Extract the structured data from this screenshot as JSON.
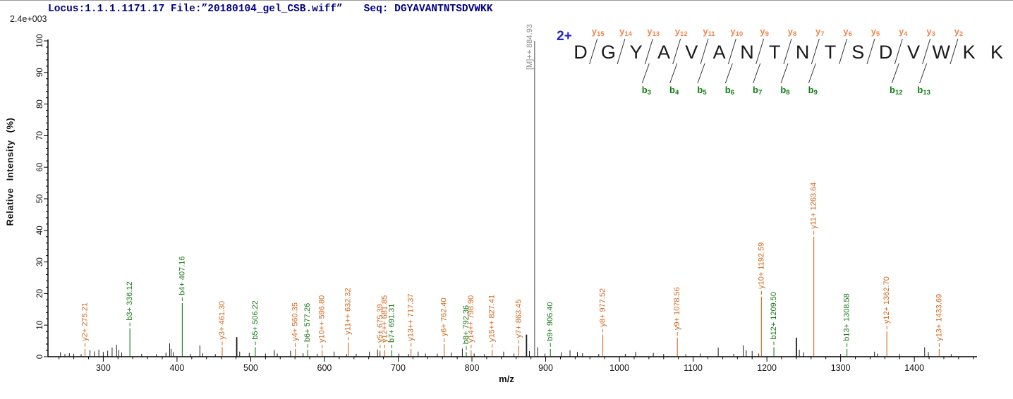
{
  "header": {
    "locus_file": "Locus:1.1.1.1171.17 File:”20180104_gel_CSB.wiff”",
    "seq": "Seq: DGYAVANTNTSDVWKK"
  },
  "colors": {
    "y_ion": "#d2691e",
    "b_ion": "#1b7a1b",
    "precursor_peak": "#8c8c8c",
    "precursor_label": "#8a8a8a",
    "noise": "#1a1a1a",
    "axis": "#000000",
    "header_text": "#000080",
    "charge": "#2121cc",
    "seq_letter": "#1a1a1a",
    "seq_y_label": "#ef8750",
    "seq_b_label": "#0f7d0f"
  },
  "sequence_panel": {
    "charge_label": "2+",
    "residues": [
      "D",
      "G",
      "Y",
      "A",
      "V",
      "A",
      "N",
      "T",
      "N",
      "T",
      "S",
      "D",
      "V",
      "W",
      "K",
      "K"
    ],
    "y_ion_marks": [
      {
        "junction": 1,
        "name": "y15"
      },
      {
        "junction": 2,
        "name": "y14"
      },
      {
        "junction": 3,
        "name": "y13"
      },
      {
        "junction": 4,
        "name": "y12"
      },
      {
        "junction": 5,
        "name": "y11"
      },
      {
        "junction": 6,
        "name": "y10"
      },
      {
        "junction": 7,
        "name": "y9"
      },
      {
        "junction": 8,
        "name": "y8"
      },
      {
        "junction": 9,
        "name": "y7"
      },
      {
        "junction": 10,
        "name": "y6"
      },
      {
        "junction": 11,
        "name": "y5"
      },
      {
        "junction": 12,
        "name": "y4"
      },
      {
        "junction": 13,
        "name": "y3"
      },
      {
        "junction": 14,
        "name": "y2"
      }
    ],
    "b_ion_marks": [
      {
        "junction": 3,
        "name": "b3"
      },
      {
        "junction": 4,
        "name": "b4"
      },
      {
        "junction": 5,
        "name": "b5"
      },
      {
        "junction": 6,
        "name": "b6"
      },
      {
        "junction": 7,
        "name": "b7"
      },
      {
        "junction": 8,
        "name": "b8"
      },
      {
        "junction": 9,
        "name": "b9"
      },
      {
        "junction": 12,
        "name": "b12"
      },
      {
        "junction": 13,
        "name": "b13"
      }
    ]
  },
  "chart_data": {
    "type": "bar",
    "title": "",
    "xlabel": "m/z",
    "ylabel": "Relative Intensity (%)",
    "y_scale_label": "2.4e+003",
    "xlim": [
      225,
      1485
    ],
    "ylim": [
      0,
      100
    ],
    "x_ticks": [
      300,
      400,
      500,
      600,
      700,
      800,
      900,
      1000,
      1100,
      1200,
      1300,
      1400
    ],
    "x_minor_step": 20,
    "y_ticks": [
      0,
      10,
      20,
      30,
      40,
      50,
      60,
      70,
      80,
      90,
      100
    ],
    "y_minor_step": 2,
    "grid": false,
    "annotated_peaks": [
      {
        "mz": 275.21,
        "intensity": 2.5,
        "ion": "y2+",
        "label": "y2+ 275.21",
        "series": "y"
      },
      {
        "mz": 336.12,
        "intensity": 9,
        "ion": "b3+",
        "label": "b3+ 336.12",
        "series": "b"
      },
      {
        "mz": 407.16,
        "intensity": 17,
        "ion": "b4+",
        "label": "b4+ 407.16",
        "series": "b"
      },
      {
        "mz": 461.3,
        "intensity": 3,
        "ion": "y3+",
        "label": "y3+ 461.30",
        "series": "y"
      },
      {
        "mz": 506.22,
        "intensity": 3,
        "ion": "b5+",
        "label": "b5+ 506.22",
        "series": "b"
      },
      {
        "mz": 560.35,
        "intensity": 2.5,
        "ion": "y4+",
        "label": "y4+ 560.35",
        "series": "y"
      },
      {
        "mz": 577.26,
        "intensity": 2.2,
        "ion": "b6+",
        "label": "b6+ 577.26",
        "series": "b"
      },
      {
        "mz": 596.8,
        "intensity": 2,
        "ion": "y10++",
        "label": "y10++ 596.80",
        "series": "y"
      },
      {
        "mz": 632.32,
        "intensity": 4.5,
        "ion": "y11++",
        "label": "y11++ 632.32",
        "series": "y"
      },
      {
        "mz": 675.39,
        "intensity": 2,
        "ion": "y5+",
        "label": "y5+ 675.39",
        "series": "y"
      },
      {
        "mz": 681.85,
        "intensity": 2,
        "ion": "y12++",
        "label": "y12++ 681.85",
        "series": "y"
      },
      {
        "mz": 691.31,
        "intensity": 2,
        "ion": "b7+",
        "label": "b7+ 691.31",
        "series": "b"
      },
      {
        "mz": 717.37,
        "intensity": 2.5,
        "ion": "y13++",
        "label": "y13++ 717.37",
        "series": "y"
      },
      {
        "mz": 762.4,
        "intensity": 4,
        "ion": "y6+",
        "label": "y6+ 762.40",
        "series": "y"
      },
      {
        "mz": 792.36,
        "intensity": 1.5,
        "ion": "b8+",
        "label": "b8+ 792.36",
        "series": "b"
      },
      {
        "mz": 798.9,
        "intensity": 2,
        "ion": "y14++",
        "label": "y14++ 798.90",
        "series": "y"
      },
      {
        "mz": 827.41,
        "intensity": 2.2,
        "ion": "y15++",
        "label": "y15++ 827.41",
        "series": "y"
      },
      {
        "mz": 863.45,
        "intensity": 3.5,
        "ion": "y7+",
        "label": "y7+ 863.45",
        "series": "y"
      },
      {
        "mz": 884.93,
        "intensity": 100,
        "ion": "[M]++",
        "label": "[M]++ 884.93",
        "series": "precursor"
      },
      {
        "mz": 906.4,
        "intensity": 2.5,
        "ion": "b9+",
        "label": "b9+ 906.40",
        "series": "b"
      },
      {
        "mz": 977.52,
        "intensity": 7,
        "ion": "y8+",
        "label": "y8+ 977.52",
        "series": "y"
      },
      {
        "mz": 1078.56,
        "intensity": 6,
        "ion": "y9+",
        "label": "y9+ 1078.56",
        "series": "y"
      },
      {
        "mz": 1192.59,
        "intensity": 19,
        "ion": "y10+",
        "label": "y10+ 1192.59",
        "series": "y"
      },
      {
        "mz": 1209.5,
        "intensity": 3,
        "ion": "b12+",
        "label": "b12+ 1209.50",
        "series": "b"
      },
      {
        "mz": 1263.64,
        "intensity": 38,
        "ion": "y11+",
        "label": "y11+ 1263.64",
        "series": "y"
      },
      {
        "mz": 1308.58,
        "intensity": 2.5,
        "ion": "b13+",
        "label": "b13+ 1308.58",
        "series": "b"
      },
      {
        "mz": 1362.7,
        "intensity": 8,
        "ion": "y12+",
        "label": "y12+ 1362.70",
        "series": "y"
      },
      {
        "mz": 1433.69,
        "intensity": 2.5,
        "ion": "y13+",
        "label": "y13+ 1433.69",
        "series": "y"
      }
    ],
    "unlabeled_peaks": [
      [
        242,
        1.4
      ],
      [
        248,
        0.9
      ],
      [
        254,
        1.1
      ],
      [
        260,
        0.9
      ],
      [
        270,
        0.8
      ],
      [
        282,
        2.1
      ],
      [
        288,
        1.7
      ],
      [
        294,
        2.2
      ],
      [
        300,
        1.5
      ],
      [
        306,
        1.9
      ],
      [
        312,
        2.9
      ],
      [
        318,
        3.8
      ],
      [
        321,
        2.1
      ],
      [
        325,
        1.3
      ],
      [
        352,
        0.9
      ],
      [
        372,
        0.8
      ],
      [
        385,
        1.3
      ],
      [
        390,
        4.2
      ],
      [
        392,
        2.5
      ],
      [
        395,
        1.4
      ],
      [
        418,
        0.9
      ],
      [
        431,
        3.6
      ],
      [
        435,
        1.1
      ],
      [
        452,
        0.8
      ],
      [
        481,
        6.2
      ],
      [
        485,
        1.6
      ],
      [
        498,
        1.2
      ],
      [
        520,
        1.0
      ],
      [
        532,
        2.1
      ],
      [
        536,
        1.0
      ],
      [
        554,
        1.9
      ],
      [
        571,
        1.1
      ],
      [
        590,
        0.9
      ],
      [
        613,
        1.6
      ],
      [
        630,
        0.8
      ],
      [
        643,
        0.9
      ],
      [
        661,
        1.6
      ],
      [
        672,
        2.2
      ],
      [
        675,
        1.5
      ],
      [
        701,
        1.0
      ],
      [
        714,
        0.9
      ],
      [
        727,
        1.6
      ],
      [
        737,
        1.0
      ],
      [
        753,
        1.0
      ],
      [
        772,
        1.3
      ],
      [
        787,
        2.6
      ],
      [
        803,
        1.0
      ],
      [
        817,
        0.8
      ],
      [
        843,
        1.6
      ],
      [
        857,
        1.0
      ],
      [
        874,
        7.0
      ],
      [
        878,
        1.8
      ],
      [
        889,
        3.0
      ],
      [
        899,
        1.0
      ],
      [
        921,
        1.4
      ],
      [
        933,
        2.0
      ],
      [
        943,
        1.5
      ],
      [
        950,
        1.1
      ],
      [
        972,
        0.9
      ],
      [
        1008,
        0.9
      ],
      [
        1022,
        1.5
      ],
      [
        1046,
        1.2
      ],
      [
        1060,
        0.9
      ],
      [
        1090,
        0.8
      ],
      [
        1110,
        1.0
      ],
      [
        1134,
        2.9
      ],
      [
        1155,
        0.9
      ],
      [
        1168,
        3.6
      ],
      [
        1172,
        2.0
      ],
      [
        1180,
        1.8
      ],
      [
        1189,
        1.0
      ],
      [
        1240,
        6.0
      ],
      [
        1244,
        2.2
      ],
      [
        1250,
        1.4
      ],
      [
        1300,
        0.9
      ],
      [
        1346,
        1.6
      ],
      [
        1350,
        1.0
      ],
      [
        1380,
        0.8
      ],
      [
        1414,
        3.0
      ],
      [
        1419,
        1.5
      ],
      [
        1450,
        0.8
      ]
    ]
  }
}
